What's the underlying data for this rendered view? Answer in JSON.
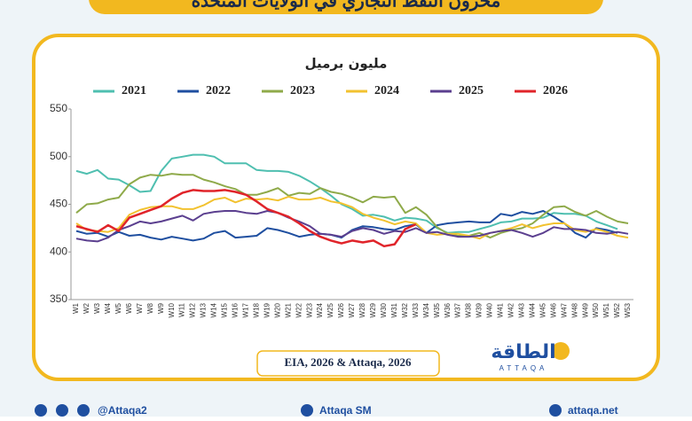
{
  "banner": "مخزون النفط التجاري في الولايات المتحدة",
  "chart_data": {
    "type": "line",
    "title": "مليون برميل",
    "categories": [
      "W1",
      "W2",
      "W3",
      "W4",
      "W5",
      "W6",
      "W7",
      "W8",
      "W9",
      "W10",
      "W11",
      "W12",
      "W13",
      "W14",
      "W15",
      "W16",
      "W17",
      "W18",
      "W19",
      "W20",
      "W21",
      "W22",
      "W23",
      "W24",
      "W25",
      "W26",
      "W27",
      "W28",
      "W29",
      "W30",
      "W31",
      "W32",
      "W33",
      "W34",
      "W35",
      "W36",
      "W37",
      "W38",
      "W39",
      "W40",
      "W41",
      "W42",
      "W43",
      "W44",
      "W45",
      "W46",
      "W47",
      "W48",
      "W49",
      "W50",
      "W51",
      "W52",
      "W53"
    ],
    "series": [
      {
        "name": "2021",
        "color": "#4fbfb0",
        "values": [
          485,
          482,
          486,
          477,
          476,
          470,
          463,
          464,
          485,
          498,
          500,
          502,
          502,
          500,
          493,
          493,
          493,
          486,
          485,
          485,
          484,
          480,
          474,
          467,
          459,
          450,
          445,
          438,
          439,
          437,
          433,
          436,
          435,
          433,
          425,
          420,
          421,
          421,
          424,
          427,
          431,
          432,
          435,
          435,
          436,
          441,
          440,
          440,
          438,
          432,
          428,
          424,
          null
        ]
      },
      {
        "name": "2022",
        "color": "#1f4fa0",
        "values": [
          422,
          419,
          420,
          416,
          421,
          417,
          418,
          415,
          413,
          416,
          414,
          412,
          414,
          420,
          422,
          415,
          416,
          417,
          425,
          423,
          420,
          416,
          418,
          419,
          418,
          415,
          423,
          427,
          426,
          424,
          423,
          427,
          429,
          420,
          428,
          430,
          431,
          432,
          431,
          431,
          440,
          438,
          442,
          440,
          443,
          437,
          430,
          420,
          415,
          425,
          423,
          420,
          null
        ]
      },
      {
        "name": "2023",
        "color": "#8faa4a",
        "values": [
          441,
          450,
          451,
          455,
          457,
          471,
          478,
          481,
          480,
          482,
          481,
          481,
          476,
          473,
          469,
          466,
          460,
          460,
          463,
          467,
          459,
          462,
          461,
          467,
          463,
          461,
          457,
          452,
          458,
          457,
          458,
          441,
          447,
          439,
          426,
          419,
          417,
          417,
          420,
          415,
          420,
          423,
          425,
          430,
          439,
          447,
          448,
          442,
          438,
          443,
          437,
          432,
          430
        ]
      },
      {
        "name": "2024",
        "color": "#f2c230",
        "values": [
          430,
          423,
          422,
          421,
          425,
          439,
          444,
          447,
          448,
          448,
          445,
          445,
          449,
          455,
          457,
          452,
          456,
          455,
          456,
          454,
          458,
          455,
          455,
          457,
          453,
          451,
          447,
          440,
          436,
          433,
          429,
          432,
          430,
          420,
          418,
          419,
          419,
          417,
          414,
          420,
          422,
          425,
          429,
          425,
          428,
          430,
          430,
          423,
          421,
          424,
          421,
          417,
          415
        ]
      },
      {
        "name": "2025",
        "color": "#5b3f8f",
        "values": [
          414,
          412,
          411,
          415,
          423,
          427,
          432,
          430,
          432,
          435,
          438,
          433,
          440,
          442,
          443,
          443,
          441,
          440,
          443,
          441,
          436,
          432,
          427,
          419,
          418,
          416,
          422,
          425,
          423,
          419,
          422,
          421,
          425,
          420,
          421,
          418,
          416,
          416,
          417,
          420,
          422,
          423,
          420,
          416,
          420,
          426,
          424,
          424,
          423,
          420,
          419,
          421,
          419
        ]
      },
      {
        "name": "2026",
        "color": "#e0242a",
        "values": [
          427,
          424,
          421,
          428,
          422,
          436,
          440,
          444,
          448,
          456,
          462,
          465,
          464,
          464,
          465,
          463,
          460,
          453,
          445,
          441,
          437,
          430,
          422,
          416,
          412,
          409,
          412,
          410,
          412,
          406,
          408,
          424,
          429,
          null,
          null,
          null,
          null,
          null,
          null,
          null,
          null,
          null,
          null,
          null,
          null,
          null,
          null,
          null,
          null,
          null,
          null,
          null,
          null
        ]
      }
    ],
    "ylim": [
      350,
      550
    ],
    "yticks": [
      350,
      400,
      450,
      500,
      550
    ],
    "grid": false
  },
  "source": "EIA, 2026 & Attaqa, 2026",
  "logo": {
    "arabic": "الطاقة",
    "latin": "ATTAQA"
  },
  "footer": [
    "@Attaqa2",
    "Attaqa SM",
    "attaqa.net"
  ]
}
